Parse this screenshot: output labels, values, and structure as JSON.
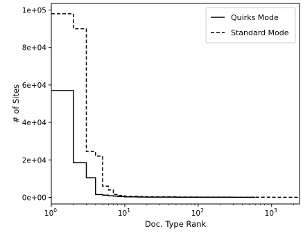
{
  "chart_data": {
    "type": "line",
    "step": "post",
    "xscale": "log",
    "xlabel": "Doc. Type Rank",
    "ylabel": "# of Sites",
    "xlim": [
      1,
      2400
    ],
    "ylim": [
      -3500,
      103500
    ],
    "grid": false,
    "legend_position": "top-right",
    "x_ticks": [
      {
        "value": 1,
        "base": "10",
        "exp": "0"
      },
      {
        "value": 10,
        "base": "10",
        "exp": "1"
      },
      {
        "value": 100,
        "base": "10",
        "exp": "2"
      },
      {
        "value": 1000,
        "base": "10",
        "exp": "3"
      }
    ],
    "y_ticks": [
      {
        "value": 0,
        "label": "0e+00"
      },
      {
        "value": 20000,
        "label": "2e+04"
      },
      {
        "value": 40000,
        "label": "4e+04"
      },
      {
        "value": 60000,
        "label": "6e+04"
      },
      {
        "value": 80000,
        "label": "8e+04"
      },
      {
        "value": 100000,
        "label": "1e+05"
      }
    ],
    "series": [
      {
        "name": "Quirks Mode",
        "style": "solid",
        "color": "#000000",
        "x": [
          1,
          2,
          3,
          4,
          5,
          6,
          7,
          8,
          9,
          10,
          15,
          20,
          50,
          100,
          300,
          600
        ],
        "y": [
          57000,
          18500,
          10500,
          1500,
          1200,
          900,
          700,
          500,
          400,
          300,
          200,
          150,
          100,
          80,
          50,
          30
        ]
      },
      {
        "name": "Standard Mode",
        "style": "dashed",
        "color": "#000000",
        "x": [
          1,
          2,
          3,
          4,
          5,
          6,
          7,
          8,
          9,
          10,
          15,
          20,
          50,
          100,
          300,
          1000,
          2400
        ],
        "y": [
          98000,
          90000,
          24500,
          22000,
          6000,
          4000,
          1500,
          1000,
          800,
          600,
          400,
          300,
          200,
          150,
          100,
          50,
          30
        ]
      }
    ]
  }
}
